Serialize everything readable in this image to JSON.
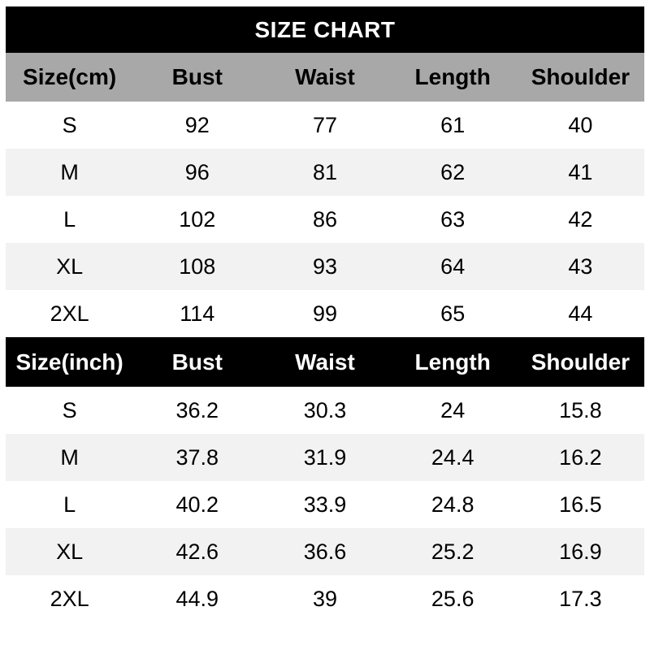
{
  "title": "SIZE CHART",
  "colors": {
    "banner_bg": "#000000",
    "banner_text": "#ffffff",
    "cm_header_bg": "#a8a8a8",
    "inch_header_bg": "#000000",
    "row_alt_bg": "#f2f2f2",
    "text": "#000000"
  },
  "cm_table": {
    "headers": [
      "Size(cm)",
      "Bust",
      "Waist",
      "Length",
      "Shoulder"
    ],
    "rows": [
      [
        "S",
        "92",
        "77",
        "61",
        "40"
      ],
      [
        "M",
        "96",
        "81",
        "62",
        "41"
      ],
      [
        "L",
        "102",
        "86",
        "63",
        "42"
      ],
      [
        "XL",
        "108",
        "93",
        "64",
        "43"
      ],
      [
        "2XL",
        "114",
        "99",
        "65",
        "44"
      ]
    ]
  },
  "inch_table": {
    "headers": [
      "Size(inch)",
      "Bust",
      "Waist",
      "Length",
      "Shoulder"
    ],
    "rows": [
      [
        "S",
        "36.2",
        "30.3",
        "24",
        "15.8"
      ],
      [
        "M",
        "37.8",
        "31.9",
        "24.4",
        "16.2"
      ],
      [
        "L",
        "40.2",
        "33.9",
        "24.8",
        "16.5"
      ],
      [
        "XL",
        "42.6",
        "36.6",
        "25.2",
        "16.9"
      ],
      [
        "2XL",
        "44.9",
        "39",
        "25.6",
        "17.3"
      ]
    ]
  }
}
